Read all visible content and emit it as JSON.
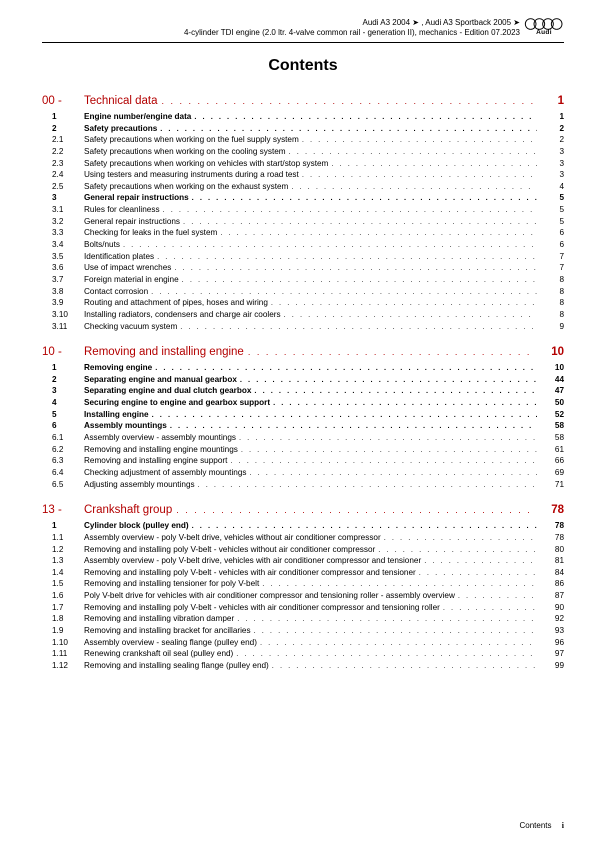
{
  "header": {
    "line1": "Audi A3 2004 ➤ , Audi A3 Sportback 2005 ➤",
    "line2": "4-cylinder TDI engine (2.0 ltr. 4-valve common rail - generation II), mechanics - Edition 07.2023",
    "logo_text": "Audi"
  },
  "title": "Contents",
  "dots": ". . . . . . . . . . . . . . . . . . . . . . . . . . . . . . . . . . . . . . . . . . . . . . . . . . . . . . . . . . . . . . . . . . . . . . . . . . . . . . . . . . . . . . . . . . . . . . . . . . . . . . . . . . . . . . . . . . . . . . . . .",
  "sections": [
    {
      "num": "00 -",
      "title": "Technical data",
      "page": "1",
      "items": [
        {
          "n": "1",
          "t": "Engine number/engine data",
          "p": "1",
          "b": true
        },
        {
          "n": "2",
          "t": "Safety precautions",
          "p": "2",
          "b": true
        },
        {
          "n": "2.1",
          "t": "Safety precautions when working on the fuel supply system",
          "p": "2"
        },
        {
          "n": "2.2",
          "t": "Safety precautions when working on the cooling system",
          "p": "3"
        },
        {
          "n": "2.3",
          "t": "Safety precautions when working on vehicles with start/stop system",
          "p": "3"
        },
        {
          "n": "2.4",
          "t": "Using testers and measuring instruments during a road test",
          "p": "3"
        },
        {
          "n": "2.5",
          "t": "Safety precautions when working on the exhaust system",
          "p": "4"
        },
        {
          "n": "3",
          "t": "General repair instructions",
          "p": "5",
          "b": true
        },
        {
          "n": "3.1",
          "t": "Rules for cleanliness",
          "p": "5"
        },
        {
          "n": "3.2",
          "t": "General repair instructions",
          "p": "5"
        },
        {
          "n": "3.3",
          "t": "Checking for leaks in the fuel system",
          "p": "6"
        },
        {
          "n": "3.4",
          "t": "Bolts/nuts",
          "p": "6"
        },
        {
          "n": "3.5",
          "t": "Identification plates",
          "p": "7"
        },
        {
          "n": "3.6",
          "t": "Use of impact wrenches",
          "p": "7"
        },
        {
          "n": "3.7",
          "t": "Foreign material in engine",
          "p": "8"
        },
        {
          "n": "3.8",
          "t": "Contact corrosion",
          "p": "8"
        },
        {
          "n": "3.9",
          "t": "Routing and attachment of pipes, hoses and wiring",
          "p": "8"
        },
        {
          "n": "3.10",
          "t": "Installing radiators, condensers and charge air coolers",
          "p": "8"
        },
        {
          "n": "3.11",
          "t": "Checking vacuum system",
          "p": "9"
        }
      ]
    },
    {
      "num": "10 -",
      "title": "Removing and installing engine",
      "page": "10",
      "items": [
        {
          "n": "1",
          "t": "Removing engine",
          "p": "10",
          "b": true
        },
        {
          "n": "2",
          "t": "Separating engine and manual gearbox",
          "p": "44",
          "b": true
        },
        {
          "n": "3",
          "t": "Separating engine and dual clutch gearbox",
          "p": "47",
          "b": true
        },
        {
          "n": "4",
          "t": "Securing engine to engine and gearbox support",
          "p": "50",
          "b": true
        },
        {
          "n": "5",
          "t": "Installing engine",
          "p": "52",
          "b": true
        },
        {
          "n": "6",
          "t": "Assembly mountings",
          "p": "58",
          "b": true
        },
        {
          "n": "6.1",
          "t": "Assembly overview - assembly mountings",
          "p": "58"
        },
        {
          "n": "6.2",
          "t": "Removing and installing engine mountings",
          "p": "61"
        },
        {
          "n": "6.3",
          "t": "Removing and installing engine support",
          "p": "66"
        },
        {
          "n": "6.4",
          "t": "Checking adjustment of assembly mountings",
          "p": "69"
        },
        {
          "n": "6.5",
          "t": "Adjusting assembly mountings",
          "p": "71"
        }
      ]
    },
    {
      "num": "13 -",
      "title": "Crankshaft group",
      "page": "78",
      "items": [
        {
          "n": "1",
          "t": "Cylinder block (pulley end)",
          "p": "78",
          "b": true
        },
        {
          "n": "1.1",
          "t": "Assembly overview - poly V-belt drive, vehicles without air conditioner compressor",
          "p": "78"
        },
        {
          "n": "1.2",
          "t": "Removing and installing poly V-belt - vehicles without air conditioner compressor",
          "p": "80"
        },
        {
          "n": "1.3",
          "t": "Assembly overview - poly V-belt drive, vehicles with air conditioner compressor and tensioner",
          "p": "81"
        },
        {
          "n": "1.4",
          "t": "Removing and installing poly V-belt - vehicles with air conditioner compressor and tensioner",
          "p": "84"
        },
        {
          "n": "1.5",
          "t": "Removing and installing tensioner for poly V-belt",
          "p": "86"
        },
        {
          "n": "1.6",
          "t": "Poly V-belt drive for vehicles with air conditioner compressor and tensioning roller - assembly overview",
          "p": "87"
        },
        {
          "n": "1.7",
          "t": "Removing and installing poly V-belt - vehicles with air conditioner compressor and tensioning roller",
          "p": "90"
        },
        {
          "n": "1.8",
          "t": "Removing and installing vibration damper",
          "p": "92"
        },
        {
          "n": "1.9",
          "t": "Removing and installing bracket for ancillaries",
          "p": "93"
        },
        {
          "n": "1.10",
          "t": "Assembly overview - sealing flange (pulley end)",
          "p": "96"
        },
        {
          "n": "1.11",
          "t": "Renewing crankshaft oil seal (pulley end)",
          "p": "97"
        },
        {
          "n": "1.12",
          "t": "Removing and installing sealing flange (pulley end)",
          "p": "99"
        }
      ]
    }
  ],
  "footer": {
    "label": "Contents",
    "page": "i"
  }
}
